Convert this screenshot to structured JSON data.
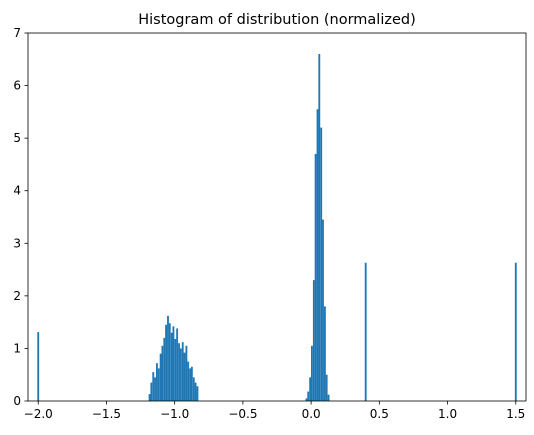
{
  "chart_data": {
    "type": "bar",
    "title": "Histogram of distribution (normalized)",
    "xlabel": "",
    "ylabel": "",
    "xlim": [
      -2.075,
      1.575
    ],
    "ylim": [
      0,
      7
    ],
    "grid": false,
    "bar_color": "#1f77b4",
    "bin_width": 0.0135,
    "xticks": [
      -2.0,
      -1.5,
      -1.0,
      -0.5,
      0.0,
      0.5,
      1.0,
      1.5
    ],
    "xtick_labels": [
      "−2.0",
      "−1.5",
      "−1.0",
      "−0.5",
      "0.0",
      "0.5",
      "1.0",
      "1.5"
    ],
    "yticks": [
      0,
      1,
      2,
      3,
      4,
      5,
      6,
      7
    ],
    "ytick_labels": [
      "0",
      "1",
      "2",
      "3",
      "4",
      "5",
      "6",
      "7"
    ],
    "bins": [
      {
        "x": -2.0,
        "y": 1.31
      },
      {
        "x": -1.184,
        "y": 0.13
      },
      {
        "x": -1.171,
        "y": 0.35
      },
      {
        "x": -1.157,
        "y": 0.55
      },
      {
        "x": -1.144,
        "y": 0.45
      },
      {
        "x": -1.13,
        "y": 0.72
      },
      {
        "x": -1.117,
        "y": 0.62
      },
      {
        "x": -1.103,
        "y": 0.9
      },
      {
        "x": -1.09,
        "y": 1.05
      },
      {
        "x": -1.076,
        "y": 1.2
      },
      {
        "x": -1.063,
        "y": 1.45
      },
      {
        "x": -1.049,
        "y": 1.62
      },
      {
        "x": -1.036,
        "y": 1.48
      },
      {
        "x": -1.022,
        "y": 1.3
      },
      {
        "x": -1.009,
        "y": 1.42
      },
      {
        "x": -0.995,
        "y": 1.18
      },
      {
        "x": -0.982,
        "y": 1.38
      },
      {
        "x": -0.968,
        "y": 1.1
      },
      {
        "x": -0.955,
        "y": 1.0
      },
      {
        "x": -0.941,
        "y": 1.12
      },
      {
        "x": -0.928,
        "y": 0.92
      },
      {
        "x": -0.914,
        "y": 1.05
      },
      {
        "x": -0.901,
        "y": 0.75
      },
      {
        "x": -0.887,
        "y": 0.62
      },
      {
        "x": -0.874,
        "y": 0.65
      },
      {
        "x": -0.86,
        "y": 0.45
      },
      {
        "x": -0.847,
        "y": 0.35
      },
      {
        "x": -0.833,
        "y": 0.28
      },
      {
        "x": -0.034,
        "y": 0.05
      },
      {
        "x": -0.021,
        "y": 0.18
      },
      {
        "x": -0.007,
        "y": 0.45
      },
      {
        "x": 0.006,
        "y": 1.05
      },
      {
        "x": 0.02,
        "y": 2.3
      },
      {
        "x": 0.033,
        "y": 4.7
      },
      {
        "x": 0.047,
        "y": 5.55
      },
      {
        "x": 0.06,
        "y": 6.6
      },
      {
        "x": 0.074,
        "y": 5.2
      },
      {
        "x": 0.087,
        "y": 3.45
      },
      {
        "x": 0.101,
        "y": 1.8
      },
      {
        "x": 0.114,
        "y": 0.5
      },
      {
        "x": 0.128,
        "y": 0.12
      },
      {
        "x": 0.4,
        "y": 2.63
      },
      {
        "x": 1.5,
        "y": 2.63
      }
    ]
  }
}
